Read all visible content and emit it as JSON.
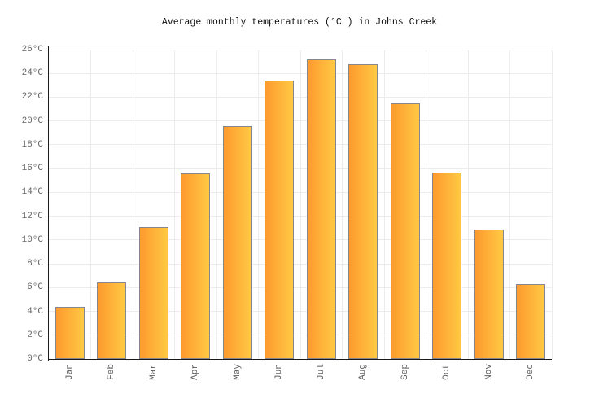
{
  "page": {
    "background": "#ffffff"
  },
  "chart_data": {
    "type": "bar",
    "title": "Average monthly temperatures (°C ) in Johns Creek",
    "categories": [
      "Jan",
      "Feb",
      "Mar",
      "Apr",
      "May",
      "Jun",
      "Jul",
      "Aug",
      "Sep",
      "Oct",
      "Nov",
      "Dec"
    ],
    "values": [
      4.4,
      6.4,
      11.1,
      15.6,
      19.6,
      23.4,
      25.2,
      24.8,
      21.5,
      15.7,
      10.9,
      6.3
    ],
    "unit": "°C",
    "xlabel": "",
    "ylabel": "",
    "ylim": [
      0,
      26
    ],
    "ytick_step": 2,
    "ytick_labels": [
      "0°C",
      "2°C",
      "4°C",
      "6°C",
      "8°C",
      "10°C",
      "12°C",
      "14°C",
      "16°C",
      "18°C",
      "20°C",
      "22°C",
      "24°C",
      "26°C"
    ],
    "grid": true,
    "legend_position": "none",
    "colors": {
      "bar_gradient_left": "#fd9a2e",
      "bar_gradient_right": "#ffc944",
      "bar_border": "#86868f",
      "gridline": "#ececec",
      "axis": "#1a1a1a",
      "tick_text": "#666666",
      "title_text": "#111111"
    }
  }
}
